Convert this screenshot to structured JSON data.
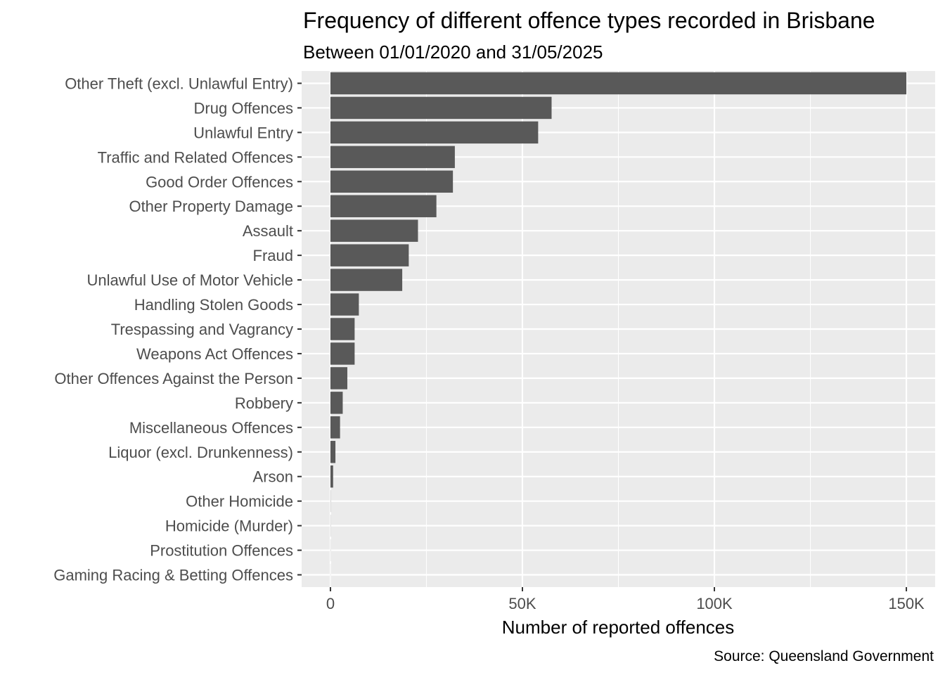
{
  "chart_data": {
    "type": "bar",
    "orientation": "horizontal",
    "title": "Frequency of different offence types recorded in Brisbane",
    "subtitle": "Between 01/01/2020 and 31/05/2025",
    "xlabel": "Number of reported offences",
    "ylabel": "",
    "caption": "Source: Queensland Government",
    "xlim": [
      -7500,
      157500
    ],
    "x_ticks": [
      0,
      50000,
      100000,
      150000
    ],
    "x_tick_labels": [
      "0",
      "50K",
      "100K",
      "150K"
    ],
    "grid": true,
    "bar_color": "#595959",
    "panel_color": "#ebebeb",
    "categories": [
      "Other Theft (excl. Unlawful Entry)",
      "Drug Offences",
      "Unlawful Entry",
      "Traffic and Related Offences",
      "Good Order Offences",
      "Other Property Damage",
      "Assault",
      "Fraud",
      "Unlawful Use of Motor Vehicle",
      "Handling Stolen Goods",
      "Trespassing and Vagrancy",
      "Weapons Act Offences",
      "Other Offences Against the Person",
      "Robbery",
      "Miscellaneous Offences",
      "Liquor (excl. Drunkenness)",
      "Arson",
      "Other Homicide",
      "Homicide (Murder)",
      "Prostitution Offences",
      "Gaming Racing & Betting Offences"
    ],
    "values": [
      150000,
      57600,
      54100,
      32400,
      31900,
      27600,
      22800,
      20400,
      18700,
      7400,
      6300,
      6300,
      4400,
      3200,
      2500,
      1300,
      700,
      50,
      40,
      30,
      20
    ]
  }
}
